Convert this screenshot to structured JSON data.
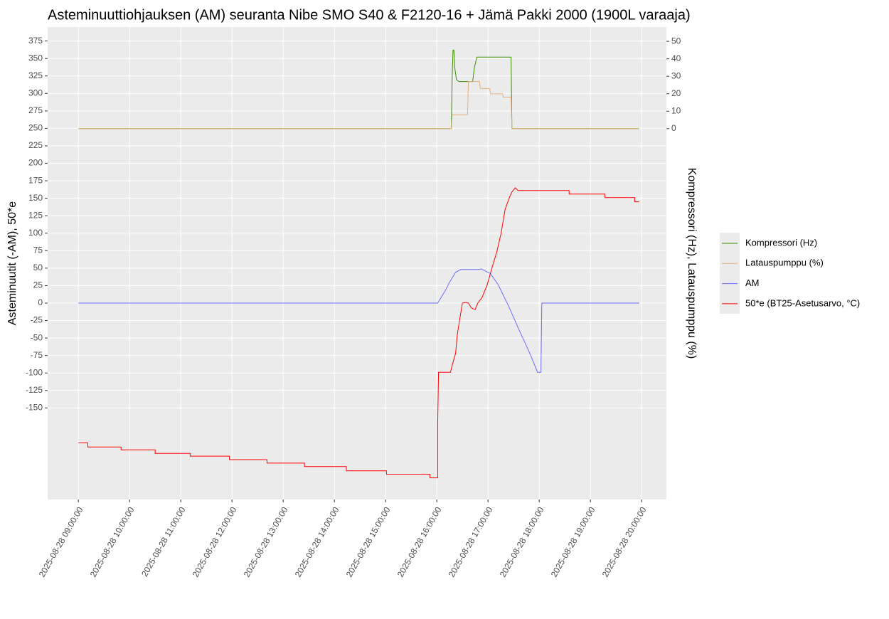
{
  "chart_data": {
    "type": "line",
    "title": "Asteminuuttiohjauksen (AM) seuranta Nibe SMO S40 & F2120-16 + Jämä Pakki 2000 (1900L varaaja)",
    "y_label": "Asteminuutit (-AM), 50*e",
    "y2_label": "Kompressori (Hz), Latauspumppu (%)",
    "xlim": [
      "2025-08-28 08:24:00",
      "2025-08-28 20:29:00"
    ],
    "xticks": [
      "2025-08-28 09:00:00",
      "2025-08-28 10:00:00",
      "2025-08-28 11:00:00",
      "2025-08-28 12:00:00",
      "2025-08-28 13:00:00",
      "2025-08-28 14:00:00",
      "2025-08-28 15:00:00",
      "2025-08-28 16:00:00",
      "2025-08-28 17:00:00",
      "2025-08-28 18:00:00",
      "2025-08-28 19:00:00",
      "2025-08-28 20:00:00"
    ],
    "ylim": [
      -281,
      395
    ],
    "yticks": [
      375,
      350,
      325,
      300,
      275,
      250,
      225,
      200,
      175,
      150,
      125,
      100,
      75,
      50,
      25,
      0,
      -25,
      -50,
      -75,
      -100,
      -125,
      -150
    ],
    "y2lim": [
      -212.4,
      58.2
    ],
    "y2ticks": [
      0,
      10,
      20,
      30,
      40,
      50
    ],
    "grid": true,
    "series": [
      {
        "name": "Kompressori (Hz)",
        "color": "#3d8f00",
        "axis": "y2",
        "x": [
          "2025-08-28 09:00:00",
          "2025-08-28 16:17:00",
          "2025-08-28 16:18:00",
          "2025-08-28 16:19:00",
          "2025-08-28 16:20:00",
          "2025-08-28 16:21:00",
          "2025-08-28 16:23:00",
          "2025-08-28 16:26:00",
          "2025-08-28 16:42:00",
          "2025-08-28 16:44:00",
          "2025-08-28 16:47:00",
          "2025-08-28 17:27:00",
          "2025-08-28 17:28:00",
          "2025-08-28 19:57:00"
        ],
        "values": [
          0,
          0,
          30,
          45,
          45,
          35,
          28,
          27,
          27,
          35,
          41,
          41,
          0,
          0
        ]
      },
      {
        "name": "Latauspumppu (%)",
        "color": "#e8b07a",
        "axis": "y2",
        "x": [
          "2025-08-28 09:00:00",
          "2025-08-28 16:17:00",
          "2025-08-28 16:18:00",
          "2025-08-28 16:36:00",
          "2025-08-28 16:37:00",
          "2025-08-28 16:50:00",
          "2025-08-28 16:51:00",
          "2025-08-28 17:02:00",
          "2025-08-28 17:03:00",
          "2025-08-28 17:17:00",
          "2025-08-28 17:18:00",
          "2025-08-28 17:27:00",
          "2025-08-28 17:28:00",
          "2025-08-28 19:57:00"
        ],
        "values": [
          0,
          0,
          8,
          8,
          27,
          27,
          23,
          23,
          20,
          20,
          18,
          18,
          0,
          0
        ]
      },
      {
        "name": "AM",
        "color": "#6b6bff",
        "x": [
          "2025-08-28 09:00:00",
          "2025-08-28 16:01:00",
          "2025-08-28 16:10:00",
          "2025-08-28 16:15:00",
          "2025-08-28 16:22:00",
          "2025-08-28 16:28:00",
          "2025-08-28 16:48:00",
          "2025-08-28 16:52:00",
          "2025-08-28 17:03:00",
          "2025-08-28 17:12:00",
          "2025-08-28 17:24:00",
          "2025-08-28 17:37:00",
          "2025-08-28 17:49:00",
          "2025-08-28 17:58:00",
          "2025-08-28 18:02:00",
          "2025-08-28 18:03:00",
          "2025-08-28 19:57:00"
        ],
        "values": [
          0,
          0,
          18,
          30,
          44,
          48,
          48,
          49,
          42,
          26,
          -4,
          -40,
          -72,
          -99,
          -99,
          0,
          0
        ]
      },
      {
        "name": "50*e (BT25-Asetusarvo, °C)",
        "color": "#ff0000",
        "x": [
          "2025-08-28 09:00:00",
          "2025-08-28 09:11:00",
          "2025-08-28 09:11:00",
          "2025-08-28 09:50:00",
          "2025-08-28 09:50:00",
          "2025-08-28 10:30:00",
          "2025-08-28 10:30:00",
          "2025-08-28 11:11:00",
          "2025-08-28 11:11:00",
          "2025-08-28 11:57:00",
          "2025-08-28 11:57:00",
          "2025-08-28 12:41:00",
          "2025-08-28 12:41:00",
          "2025-08-28 13:25:00",
          "2025-08-28 13:25:00",
          "2025-08-28 14:14:00",
          "2025-08-28 14:14:00",
          "2025-08-28 15:01:00",
          "2025-08-28 15:01:00",
          "2025-08-28 15:52:00",
          "2025-08-28 15:52:00",
          "2025-08-28 16:01:00",
          "2025-08-28 16:01:00",
          "2025-08-28 16:02:00",
          "2025-08-28 16:16:00",
          "2025-08-28 16:18:00",
          "2025-08-28 16:22:00",
          "2025-08-28 16:24:00",
          "2025-08-28 16:27:00",
          "2025-08-28 16:30:00",
          "2025-08-28 16:34:00",
          "2025-08-28 16:37:00",
          "2025-08-28 16:40:00",
          "2025-08-28 16:42:00",
          "2025-08-28 16:45:00",
          "2025-08-28 16:48:00",
          "2025-08-28 16:53:00",
          "2025-08-28 16:59:00",
          "2025-08-28 17:05:00",
          "2025-08-28 17:10:00",
          "2025-08-28 17:15:00",
          "2025-08-28 17:20:00",
          "2025-08-28 17:25:00",
          "2025-08-28 17:28:00",
          "2025-08-28 17:32:00",
          "2025-08-28 17:35:00",
          "2025-08-28 18:35:00",
          "2025-08-28 18:35:00",
          "2025-08-28 19:17:00",
          "2025-08-28 19:17:00",
          "2025-08-28 19:52:00",
          "2025-08-28 19:52:00",
          "2025-08-28 19:57:00"
        ],
        "values": [
          -200,
          -200,
          -206,
          -206,
          -210,
          -210,
          -215,
          -215,
          -219,
          -219,
          -224,
          -224,
          -229,
          -229,
          -234,
          -234,
          -240,
          -240,
          -245,
          -245,
          -250,
          -250,
          -174,
          -99,
          -99,
          -89,
          -72,
          -45,
          -22,
          0,
          1,
          0,
          -6,
          -8,
          -9,
          0,
          8,
          26,
          52,
          72,
          98,
          134,
          151,
          159,
          165,
          161,
          161,
          156,
          156,
          151,
          151,
          145,
          145
        ]
      }
    ]
  }
}
